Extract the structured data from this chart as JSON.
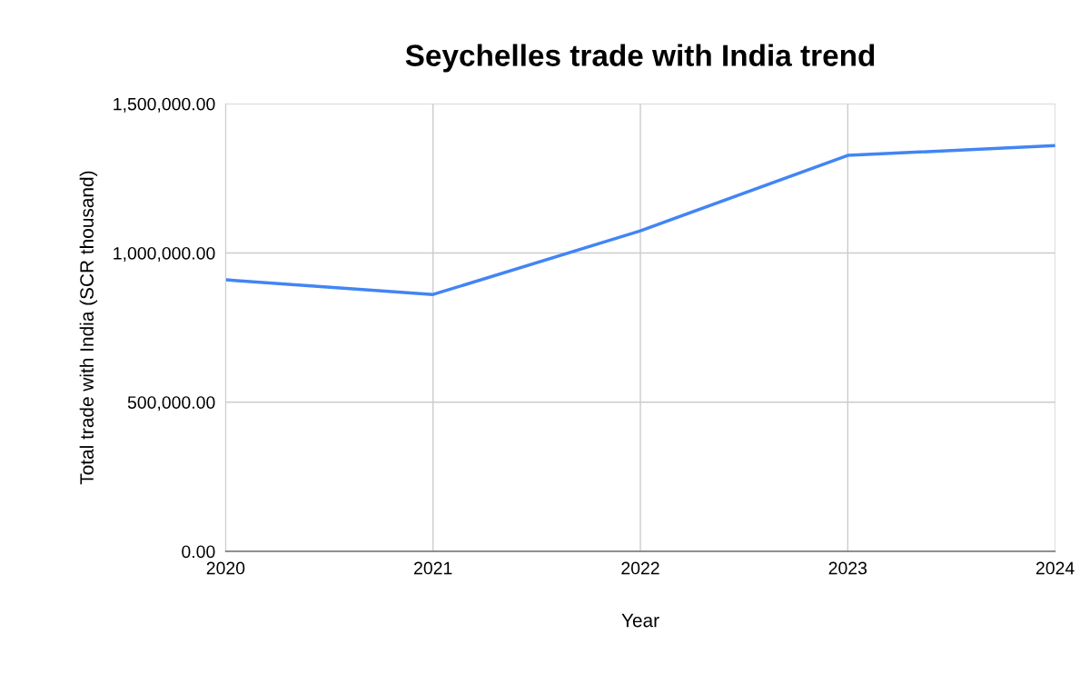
{
  "chart_data": {
    "type": "line",
    "title": "Seychelles trade with India trend",
    "xlabel": "Year",
    "ylabel": "Total trade with India (SCR thousand)",
    "x": [
      2020,
      2021,
      2022,
      2023,
      2024
    ],
    "series": [
      {
        "color": "#4285f4",
        "values": [
          910000,
          861000,
          1074000,
          1327000,
          1360000
        ]
      }
    ],
    "xlim": [
      2020,
      2024
    ],
    "xticks": [
      2020,
      2021,
      2022,
      2023,
      2024
    ],
    "ylim": [
      0,
      1500000
    ],
    "yticks": [
      {
        "value": 0,
        "label": "0.00"
      },
      {
        "value": 500000,
        "label": "500,000.00"
      },
      {
        "value": 1000000,
        "label": "1,000,000.00"
      },
      {
        "value": 1500000,
        "label": "1,500,000.00"
      }
    ],
    "grid": true,
    "marker": "none",
    "line_style": "solid"
  }
}
